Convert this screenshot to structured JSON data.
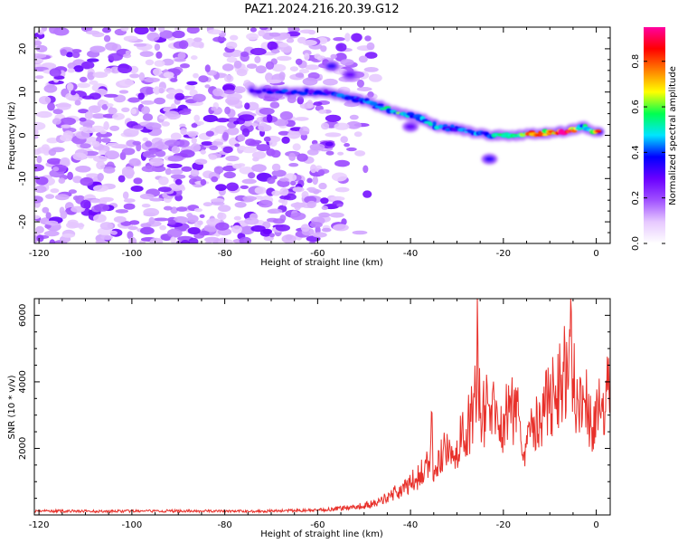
{
  "figure_title": "PAZ1.2024.216.20.39.G12",
  "chart_data": [
    {
      "type": "heatmap",
      "xlabel": "Height of straight line (km)",
      "ylabel": "Frequency (Hz)",
      "xlim": [
        -121,
        3
      ],
      "ylim": [
        -25,
        25
      ],
      "xticks": [
        -120,
        -100,
        -80,
        -60,
        -40,
        -20,
        0
      ],
      "yticks": [
        -20,
        -10,
        0,
        10,
        20
      ],
      "colorbar": {
        "label": "Normalized spectral amplitude",
        "range": [
          0,
          0.95
        ],
        "ticks": [
          "0.0",
          "0.2",
          "0.4",
          "0.6",
          "0.8"
        ],
        "colors": [
          "#ffffff",
          "#e6c8ff",
          "#a050ff",
          "#6a00ff",
          "#0000ff",
          "#00e5ff",
          "#00ff50",
          "#ffff00",
          "#ff8000",
          "#ff0000",
          "#ff00a0"
        ]
      },
      "noise_region_x": [
        -121,
        -47
      ],
      "noise_region_y": [
        -25,
        25
      ],
      "ridge": [
        {
          "x": -74,
          "y": 10.3,
          "v": 0.3
        },
        {
          "x": -66,
          "y": 10.0,
          "v": 0.4
        },
        {
          "x": -59,
          "y": 10.0,
          "v": 0.35
        },
        {
          "x": -54,
          "y": 9.0,
          "v": 0.45
        },
        {
          "x": -50,
          "y": 8.0,
          "v": 0.4
        },
        {
          "x": -46,
          "y": 6.5,
          "v": 0.5
        },
        {
          "x": -42,
          "y": 5.0,
          "v": 0.55
        },
        {
          "x": -38,
          "y": 4.0,
          "v": 0.45
        },
        {
          "x": -34,
          "y": 2.0,
          "v": 0.5
        },
        {
          "x": -30,
          "y": 1.5,
          "v": 0.4
        },
        {
          "x": -26,
          "y": 0.5,
          "v": 0.45
        },
        {
          "x": -22,
          "y": 0.0,
          "v": 0.5
        },
        {
          "x": -18,
          "y": 0.0,
          "v": 0.55
        },
        {
          "x": -14,
          "y": 0.3,
          "v": 0.75
        },
        {
          "x": -10,
          "y": 0.5,
          "v": 0.8
        },
        {
          "x": -6,
          "y": 1.0,
          "v": 0.9
        },
        {
          "x": -3,
          "y": 2.0,
          "v": 0.5
        },
        {
          "x": 1,
          "y": 0.5,
          "v": 0.9
        }
      ],
      "side_blobs": [
        {
          "x": -57,
          "y": 16,
          "v": 0.35
        },
        {
          "x": -53,
          "y": 14,
          "v": 0.3
        },
        {
          "x": -23,
          "y": -5.5,
          "v": 0.35
        },
        {
          "x": -40,
          "y": 2.0,
          "v": 0.3
        }
      ]
    },
    {
      "type": "line",
      "xlabel": "Height of straight line (km)",
      "ylabel": "SNR (10 * v/v)",
      "xlim": [
        -121,
        3
      ],
      "ylim": [
        0,
        6500
      ],
      "xticks": [
        -120,
        -100,
        -80,
        -60,
        -40,
        -20,
        0
      ],
      "yticks": [
        2000,
        4000,
        6000
      ],
      "color": "#e8302a",
      "x": [
        -121,
        -105,
        -90,
        -75,
        -60,
        -55,
        -50,
        -47,
        -45,
        -43,
        -41,
        -39,
        -37,
        -36,
        -35.5,
        -35,
        -33,
        -31,
        -29,
        -27,
        -26,
        -25.5,
        -25,
        -23,
        -21,
        -19,
        -17,
        -16,
        -14,
        -12,
        -10,
        -9,
        -8,
        -7,
        -6,
        -5.5,
        -5,
        -4,
        -3,
        -2,
        -1,
        0,
        1,
        2,
        3
      ],
      "y": [
        120,
        110,
        120,
        110,
        140,
        200,
        280,
        360,
        550,
        700,
        800,
        1100,
        1300,
        1600,
        3100,
        1000,
        1900,
        1700,
        2300,
        2800,
        3800,
        5400,
        2900,
        3300,
        2700,
        3000,
        3400,
        1800,
        3200,
        2600,
        3700,
        3500,
        3800,
        4300,
        3900,
        6500,
        4100,
        3500,
        2900,
        3300,
        2600,
        3300,
        2900,
        3100,
        4800
      ]
    }
  ]
}
